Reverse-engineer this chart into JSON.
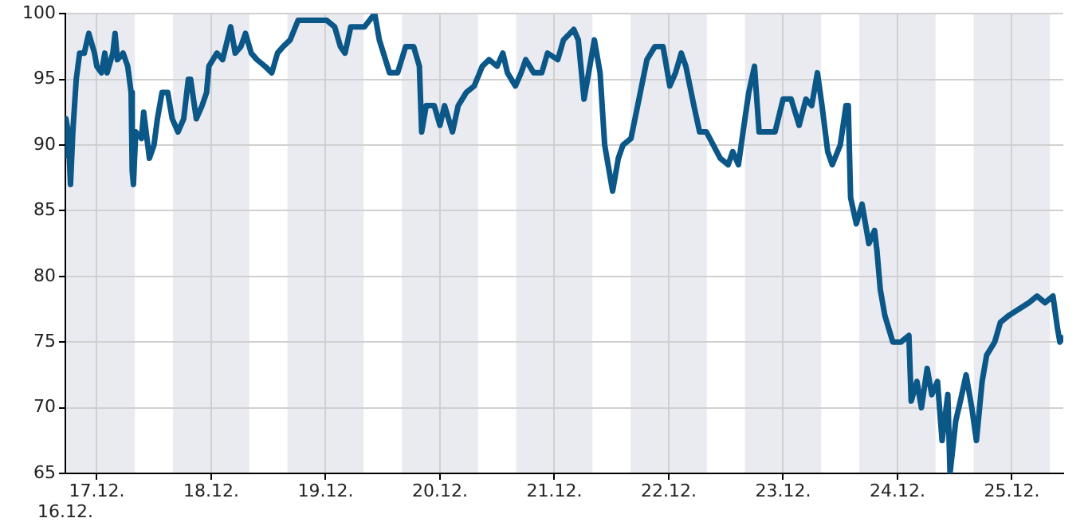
{
  "chart_data": {
    "type": "line",
    "series": [
      {
        "color": "#0b5788",
        "x": [
          "--12-16T17:24",
          "--12-16T17:31",
          "--12-16T18:00",
          "--12-16T18:29",
          "--12-16T18:58",
          "--12-16T19:41",
          "--12-16T20:24",
          "--12-16T21:22",
          "--12-16T22:19",
          "--12-16T23:31",
          "--12-17T00:00",
          "--12-17T00:58",
          "--12-17T01:41",
          "--12-17T02:10",
          "--12-17T03:22",
          "--12-17T03:50",
          "--12-17T04:19",
          "--12-17T05:31",
          "--12-17T06:29",
          "--12-17T07:12",
          "--12-17T07:26",
          "--12-17T07:41",
          "--12-17T08:10",
          "--12-17T09:22",
          "--12-17T09:50",
          "--12-17T11:02",
          "--12-17T12:00",
          "--12-17T12:43",
          "--12-17T13:41",
          "--12-17T14:53",
          "--12-17T15:50",
          "--12-17T17:02",
          "--12-17T18:14",
          "--12-17T19:12",
          "--12-17T19:41",
          "--12-17T20:53",
          "--12-17T22:05",
          "--12-17T23:02",
          "--12-17T23:31",
          "--12-18T01:12",
          "--12-18T02:24",
          "--12-18T04:05",
          "--12-18T05:02",
          "--12-18T06:14",
          "--12-18T07:12",
          "--12-18T08:24",
          "--12-18T09:36",
          "--12-18T11:17",
          "--12-18T12:43",
          "--12-18T13:55",
          "--12-18T15:07",
          "--12-18T16:34",
          "--12-18T18:14",
          "--12-18T19:55",
          "--12-18T22:05",
          "--12-19T00:14",
          "--12-19T01:55",
          "--12-19T03:07",
          "--12-19T04:05",
          "--12-19T05:17",
          "--12-19T08:10",
          "--12-19T10:19",
          "--12-19T11:17",
          "--12-19T13:26",
          "--12-19T15:07",
          "--12-19T16:48",
          "--12-19T18:29",
          "--12-19T19:41",
          "--12-19T20:10",
          "--12-19T21:07",
          "--12-19T22:48",
          "--12-20T00:00",
          "--12-20T00:58",
          "--12-20T02:38",
          "--12-20T03:50",
          "--12-20T05:31",
          "--12-20T07:12",
          "--12-20T08:53",
          "--12-20T10:19",
          "--12-20T12:00",
          "--12-20T13:12",
          "--12-20T14:10",
          "--12-20T15:50",
          "--12-20T17:02",
          "--12-20T18:00",
          "--12-20T19:41",
          "--12-20T21:22",
          "--12-20T22:34",
          "--12-21T00:43",
          "--12-21T01:55",
          "--12-21T04:05",
          "--12-21T05:02",
          "--12-21T06:14",
          "--12-21T07:12",
          "--12-21T08:24",
          "--12-21T09:36",
          "--12-21T10:34",
          "--12-21T12:14",
          "--12-21T13:26",
          "--12-21T14:24",
          "--12-21T16:05",
          "--12-21T17:46",
          "--12-21T19:26",
          "--12-21T21:07",
          "--12-21T22:48",
          "--12-22T00:14",
          "--12-22T01:26",
          "--12-22T02:38",
          "--12-22T03:36",
          "--12-22T05:17",
          "--12-22T06:29",
          "--12-22T07:55",
          "--12-22T10:48",
          "--12-22T12:29",
          "--12-22T13:26",
          "--12-22T14:38",
          "--12-22T15:36",
          "--12-22T16:48",
          "--12-22T18:00",
          "--12-22T18:58",
          "--12-22T20:38",
          "--12-22T22:19",
          "--12-23T00:00",
          "--12-23T01:41",
          "--12-23T03:22",
          "--12-23T04:48",
          "--12-23T06:00",
          "--12-23T07:12",
          "--12-23T08:10",
          "--12-23T09:22",
          "--12-23T10:19",
          "--12-23T12:00",
          "--12-23T13:12",
          "--12-23T13:41",
          "--12-23T14:10",
          "--12-23T15:22",
          "--12-23T16:34",
          "--12-23T18:00",
          "--12-23T19:12",
          "--12-23T19:41",
          "--12-23T20:24",
          "--12-23T21:22",
          "--12-23T23:02",
          "--12-24T00:43",
          "--12-24T02:24",
          "--12-24T02:53",
          "--12-24T04:05",
          "--12-24T05:02",
          "--12-24T06:14",
          "--12-24T07:12",
          "--12-24T08:24",
          "--12-24T09:22",
          "--12-24T10:34",
          "--12-24T11:02",
          "--12-24T12:14",
          "--12-24T13:12",
          "--12-24T14:24",
          "--12-24T15:36",
          "--12-24T16:34",
          "--12-24T17:46",
          "--12-24T18:43",
          "--12-24T20:24",
          "--12-24T21:36",
          "--12-24T23:17",
          "--12-25T01:26",
          "--12-25T03:36",
          "--12-25T05:17",
          "--12-25T06:58",
          "--12-25T08:38",
          "--12-25T09:36",
          "--12-25T10:05",
          "--12-25T10:48"
        ],
        "values": [
          89,
          92,
          91,
          87,
          91,
          95,
          97,
          97,
          98.5,
          97,
          96,
          95.5,
          97,
          95.5,
          97,
          98.5,
          96.5,
          97,
          96,
          94,
          88,
          87,
          91,
          90.5,
          92.5,
          89,
          90,
          92,
          94,
          94,
          92,
          91,
          92,
          95,
          95,
          92,
          93,
          94,
          96,
          97,
          96.5,
          99,
          97,
          97.5,
          98.5,
          97,
          96.5,
          96,
          95.5,
          97,
          97.5,
          98,
          99.5,
          99.5,
          99.5,
          99.5,
          99,
          97.5,
          97,
          99,
          99,
          100,
          98,
          95.5,
          95.5,
          97.5,
          97.5,
          96,
          91,
          93,
          93,
          91.5,
          93,
          91,
          93,
          94,
          94.5,
          96,
          96.5,
          96,
          97,
          95.5,
          94.5,
          95.5,
          96.5,
          95.5,
          95.5,
          97,
          96.5,
          98,
          98.8,
          98,
          93.5,
          95.5,
          98,
          95.5,
          90,
          86.5,
          89,
          90,
          90.5,
          93.5,
          96.5,
          97.5,
          97.5,
          94.5,
          95.5,
          97,
          96,
          93,
          91,
          91,
          89,
          88.5,
          89.5,
          88.5,
          91,
          94,
          96,
          91,
          91,
          91,
          93.5,
          93.5,
          91.5,
          93.5,
          93,
          95.5,
          93,
          89.5,
          88.5,
          90,
          93,
          93,
          86,
          84,
          85.5,
          82.5,
          83.5,
          82,
          79,
          77,
          75,
          75,
          75.5,
          70.5,
          72,
          70,
          73,
          71,
          72,
          67.5,
          71,
          65,
          69,
          70.5,
          72.5,
          70,
          67.5,
          72,
          74,
          75,
          76.5,
          77,
          77.5,
          78,
          78.5,
          78,
          78.5,
          76,
          75,
          75.5
        ]
      }
    ],
    "xlim": [
      "--12-16T17:24",
      "--12-25T10:48"
    ],
    "annotations": [
      "16.12."
    ],
    "xticks": [
      {
        "value": "--12-17",
        "label": "17.12."
      },
      {
        "value": "--12-18",
        "label": "18.12."
      },
      {
        "value": "--12-19",
        "label": "19.12."
      },
      {
        "value": "--12-20",
        "label": "20.12."
      },
      {
        "value": "--12-21",
        "label": "21.12."
      },
      {
        "value": "--12-22",
        "label": "22.12."
      },
      {
        "value": "--12-23",
        "label": "23.12."
      },
      {
        "value": "--12-24",
        "label": "24.12."
      },
      {
        "value": "--12-25",
        "label": "25.12."
      }
    ],
    "ylim": [
      65,
      100
    ],
    "yticks": [
      65,
      70,
      75,
      80,
      85,
      90,
      95,
      100
    ],
    "grid": true,
    "bands": [
      {
        "axis": "x",
        "from": "--12-16T17:24",
        "to": "--12-17T08:00",
        "color": "#eaebf1"
      },
      {
        "axis": "x",
        "from": "--12-17T16:00",
        "to": "--12-18T08:00",
        "color": "#eaebf1"
      },
      {
        "axis": "x",
        "from": "--12-18T16:00",
        "to": "--12-19T08:00",
        "color": "#eaebf1"
      },
      {
        "axis": "x",
        "from": "--12-19T16:00",
        "to": "--12-20T08:00",
        "color": "#eaebf1"
      },
      {
        "axis": "x",
        "from": "--12-20T16:00",
        "to": "--12-21T08:00",
        "color": "#eaebf1"
      },
      {
        "axis": "x",
        "from": "--12-21T16:00",
        "to": "--12-22T08:00",
        "color": "#eaebf1"
      },
      {
        "axis": "x",
        "from": "--12-22T16:00",
        "to": "--12-23T08:00",
        "color": "#eaebf1"
      },
      {
        "axis": "x",
        "from": "--12-23T16:00",
        "to": "--12-24T08:00",
        "color": "#eaebf1"
      },
      {
        "axis": "x",
        "from": "--12-24T16:00",
        "to": "--12-25T08:00",
        "color": "#eaebf1"
      }
    ]
  }
}
